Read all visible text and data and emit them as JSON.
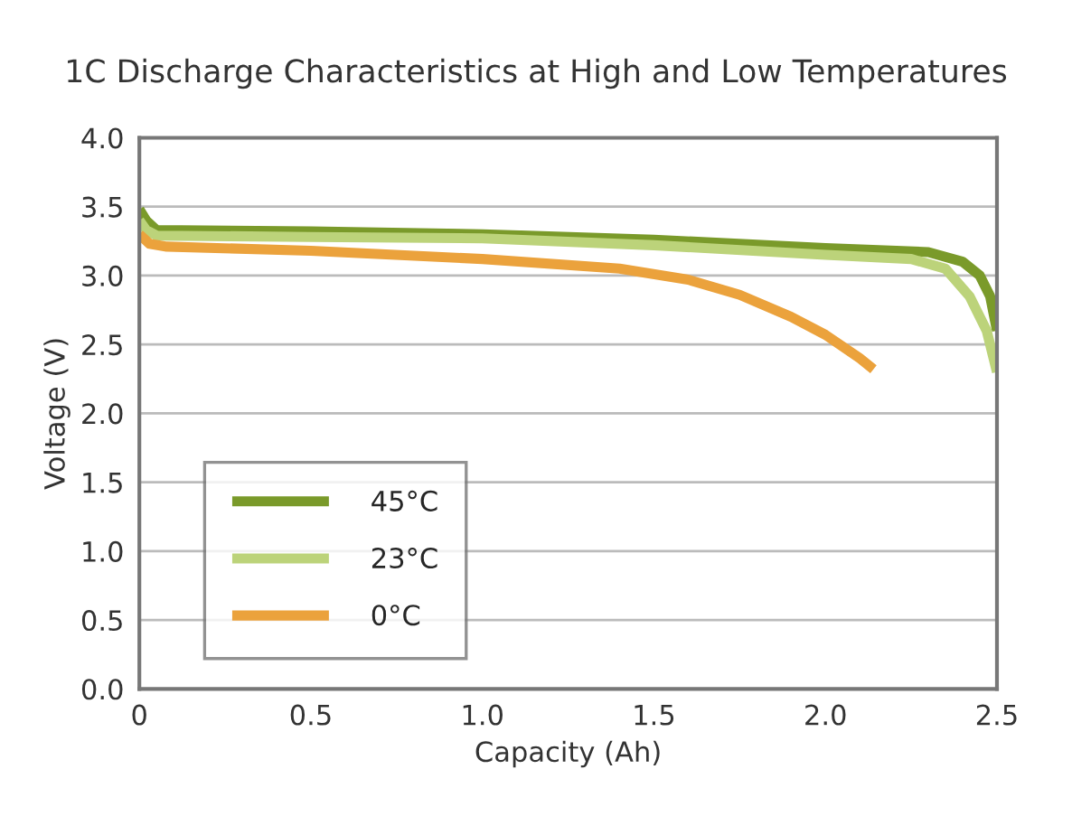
{
  "chart_data": {
    "type": "line",
    "title": "1C Discharge Characteristics at High and Low Temperatures",
    "xlabel": "Capacity (Ah)",
    "ylabel": "Voltage (V)",
    "xlim": [
      0,
      2.5
    ],
    "xticks": [
      {
        "value": 0,
        "label": "0"
      },
      {
        "value": 0.5,
        "label": "0.5"
      },
      {
        "value": 1.0,
        "label": "1.0"
      },
      {
        "value": 1.5,
        "label": "1.5"
      },
      {
        "value": 2.0,
        "label": "2.0"
      },
      {
        "value": 2.5,
        "label": "2.5"
      }
    ],
    "ylim": [
      0,
      4
    ],
    "yticks": [
      {
        "value": 0,
        "label": "0.0"
      },
      {
        "value": 0.5,
        "label": "0.5"
      },
      {
        "value": 1.0,
        "label": "1.0"
      },
      {
        "value": 1.5,
        "label": "1.5"
      },
      {
        "value": 2.0,
        "label": "2.0"
      },
      {
        "value": 2.5,
        "label": "2.5"
      },
      {
        "value": 3.0,
        "label": "3.0"
      },
      {
        "value": 3.5,
        "label": "3.5"
      },
      {
        "value": 4.0,
        "label": "4.0"
      }
    ],
    "grid": "y",
    "legend": "bottom left",
    "marker": "none",
    "line_style": "solid",
    "series": [
      {
        "name": "45°C",
        "color": "#7a9a2a",
        "x": [
          0,
          0.02,
          0.05,
          0.5,
          1.0,
          1.5,
          2.0,
          2.3,
          2.4,
          2.45,
          2.48,
          2.5
        ],
        "values": [
          3.48,
          3.4,
          3.33,
          3.32,
          3.3,
          3.26,
          3.2,
          3.17,
          3.1,
          3.0,
          2.85,
          2.6
        ]
      },
      {
        "name": "23°C",
        "color": "#bcd37a",
        "x": [
          0,
          0.02,
          0.05,
          0.5,
          1.0,
          1.5,
          2.0,
          2.25,
          2.35,
          2.42,
          2.47,
          2.5
        ],
        "values": [
          3.4,
          3.33,
          3.29,
          3.28,
          3.27,
          3.22,
          3.15,
          3.12,
          3.05,
          2.85,
          2.6,
          2.3
        ]
      },
      {
        "name": "0°C",
        "color": "#eba23c",
        "x": [
          0,
          0.03,
          0.08,
          0.5,
          1.0,
          1.4,
          1.6,
          1.75,
          1.9,
          2.0,
          2.1,
          2.14
        ],
        "values": [
          3.3,
          3.23,
          3.21,
          3.18,
          3.12,
          3.05,
          2.97,
          2.86,
          2.7,
          2.57,
          2.4,
          2.32
        ]
      }
    ]
  }
}
